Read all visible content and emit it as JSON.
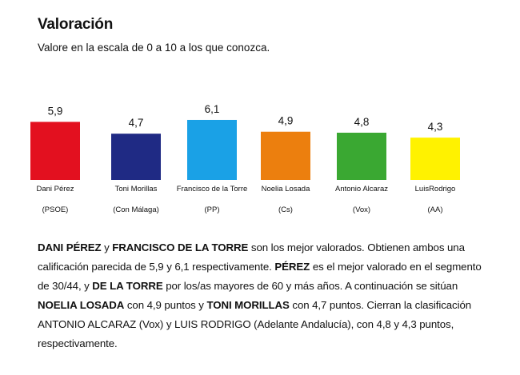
{
  "header": {
    "title": "Valoración",
    "subtitle": "Valore en la escala de 0 a 10 a los que conozca."
  },
  "chart_data": {
    "type": "bar",
    "categories": [
      "Dani Pérez",
      "Toni Morillas",
      "Francisco de la Torre",
      "Noelia Losada",
      "Antonio Alcaraz",
      "LuisRodrigo"
    ],
    "parties": [
      "(PSOE)",
      "(Con Málaga)",
      "(PP)",
      "(Cs)",
      "(Vox)",
      "(AA)"
    ],
    "values": [
      5.9,
      4.7,
      6.1,
      4.9,
      4.8,
      4.3
    ],
    "value_labels": [
      "5,9",
      "4,7",
      "6,1",
      "4,9",
      "4,8",
      "4,3"
    ],
    "colors": [
      "#e3101f",
      "#1f2a84",
      "#1aa1e6",
      "#ec7f0e",
      "#3aa832",
      "#fff200"
    ],
    "ylim": [
      0,
      10
    ],
    "grid": false,
    "legend": "none"
  },
  "paragraph": [
    {
      "text": "DANI PÉREZ",
      "bold": true
    },
    {
      "text": " y ",
      "bold": false
    },
    {
      "text": "FRANCISCO DE LA TORRE",
      "bold": true
    },
    {
      "text": " son los mejor valorados. Obtienen ambos una calificación parecida de 5,9 y 6,1 respectivamente. ",
      "bold": false
    },
    {
      "text": "PÉREZ",
      "bold": true
    },
    {
      "text": " es el mejor valorado en el segmento de 30/44, y ",
      "bold": false
    },
    {
      "text": "DE LA TORRE",
      "bold": true
    },
    {
      "text": " por los/as mayores de 60 y más años. A continuación se sitúan ",
      "bold": false
    },
    {
      "text": "NOELIA LOSADA",
      "bold": true
    },
    {
      "text": " con 4,9 puntos y ",
      "bold": false
    },
    {
      "text": "TONI MORILLAS",
      "bold": true
    },
    {
      "text": " con 4,7 puntos. Cierran la clasificación ANTONIO ALCARAZ (Vox) y LUIS RODRIGO (Adelante Andalucía), con 4,8 y 4,3 puntos, respectivamente.",
      "bold": false
    }
  ]
}
